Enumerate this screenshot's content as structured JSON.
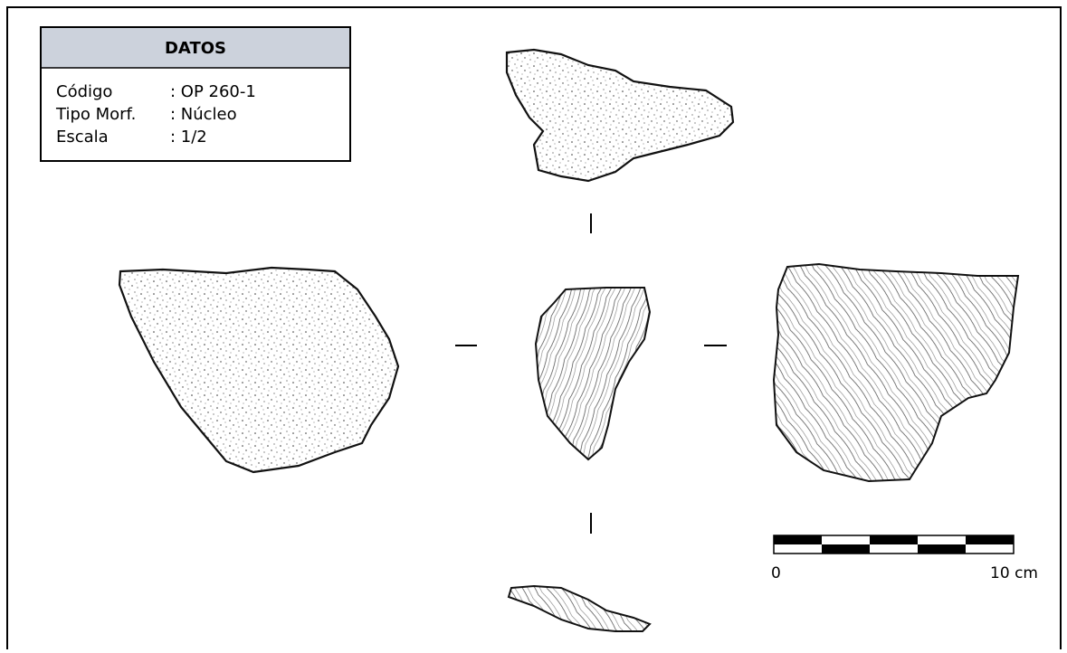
{
  "header": {
    "title": "DATOS"
  },
  "table": {
    "rows": [
      [
        "Código",
        ": OP 260-1"
      ],
      [
        "Tipo Morf.",
        ": Núcleo"
      ],
      [
        "Escala",
        ": 1/2"
      ]
    ]
  },
  "scale_bar": {
    "start_label": "0",
    "end_label": "10 cm"
  }
}
